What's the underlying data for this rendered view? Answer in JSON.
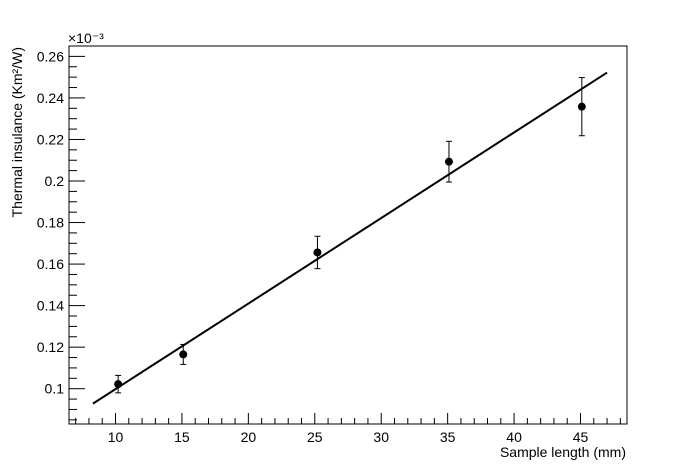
{
  "chart_data": {
    "type": "scatter",
    "xlabel": "Sample length (mm)",
    "ylabel": "Thermal insulance (Km²/W)",
    "y_exponent_label": "×10⁻³",
    "xlim": [
      6.5,
      48.5
    ],
    "ylim": [
      0.083,
      0.265
    ],
    "x_ticks": [
      10,
      15,
      20,
      25,
      30,
      35,
      40,
      45
    ],
    "x_tick_labels": [
      "10",
      "15",
      "20",
      "25",
      "30",
      "35",
      "40",
      "45"
    ],
    "y_ticks": [
      0.1,
      0.12,
      0.14,
      0.16,
      0.18,
      0.2,
      0.22,
      0.24,
      0.26
    ],
    "y_tick_labels": [
      "0.1",
      "0.12",
      "0.14",
      "0.16",
      "0.18",
      "0.2",
      "0.22",
      "0.24",
      "0.26"
    ],
    "grid": false,
    "series": [
      {
        "type": "scatter-errorbar",
        "points": [
          {
            "x": 10.2,
            "y": 0.1022,
            "err": 0.0042
          },
          {
            "x": 15.1,
            "y": 0.1165,
            "err": 0.0048
          },
          {
            "x": 25.2,
            "y": 0.1656,
            "err": 0.0078
          },
          {
            "x": 35.1,
            "y": 0.2093,
            "err": 0.0098
          },
          {
            "x": 45.1,
            "y": 0.2358,
            "err": 0.014
          }
        ],
        "color": "#000000"
      },
      {
        "type": "fit-line",
        "x": [
          8.3,
          47.0
        ],
        "y": [
          0.0928,
          0.2522
        ],
        "color": "#000000"
      }
    ]
  }
}
